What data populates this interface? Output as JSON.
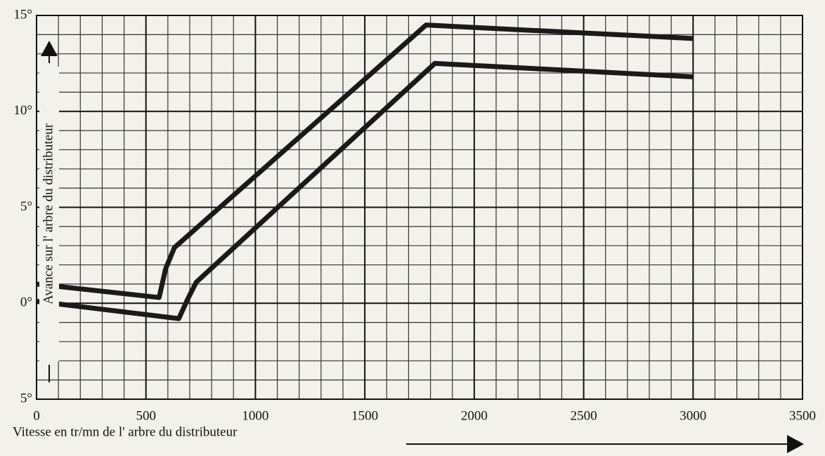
{
  "chart_data": {
    "type": "line",
    "x_label": "Vitesse en tr/mn de l' arbre du distributeur",
    "y_label": "Avance sur l' arbre du distributeur",
    "series": [
      {
        "color": "#1a1a1a",
        "x": [
          0,
          560,
          590,
          630,
          1780,
          3000
        ],
        "values": [
          1,
          0.3,
          1.8,
          2.9,
          14.5,
          13.8
        ]
      },
      {
        "color": "#1a1a1a",
        "x": [
          0,
          650,
          690,
          730,
          1820,
          3000
        ],
        "values": [
          0.1,
          -0.8,
          0.2,
          1.1,
          12.5,
          11.8
        ]
      }
    ],
    "xlim": [
      0,
      3500
    ],
    "xticks": [
      0,
      500,
      1000,
      1500,
      2000,
      2500,
      3000,
      3500
    ],
    "ylim": [
      -5,
      15
    ],
    "yticks": [
      {
        "value": -5,
        "label": "5°"
      },
      {
        "value": 0,
        "label": "0°"
      },
      {
        "value": 5,
        "label": "5°"
      },
      {
        "value": 10,
        "label": "10°"
      },
      {
        "value": 15,
        "label": "15°"
      }
    ],
    "grid": true,
    "minor_grid": {
      "x": 100,
      "y": 1
    }
  }
}
